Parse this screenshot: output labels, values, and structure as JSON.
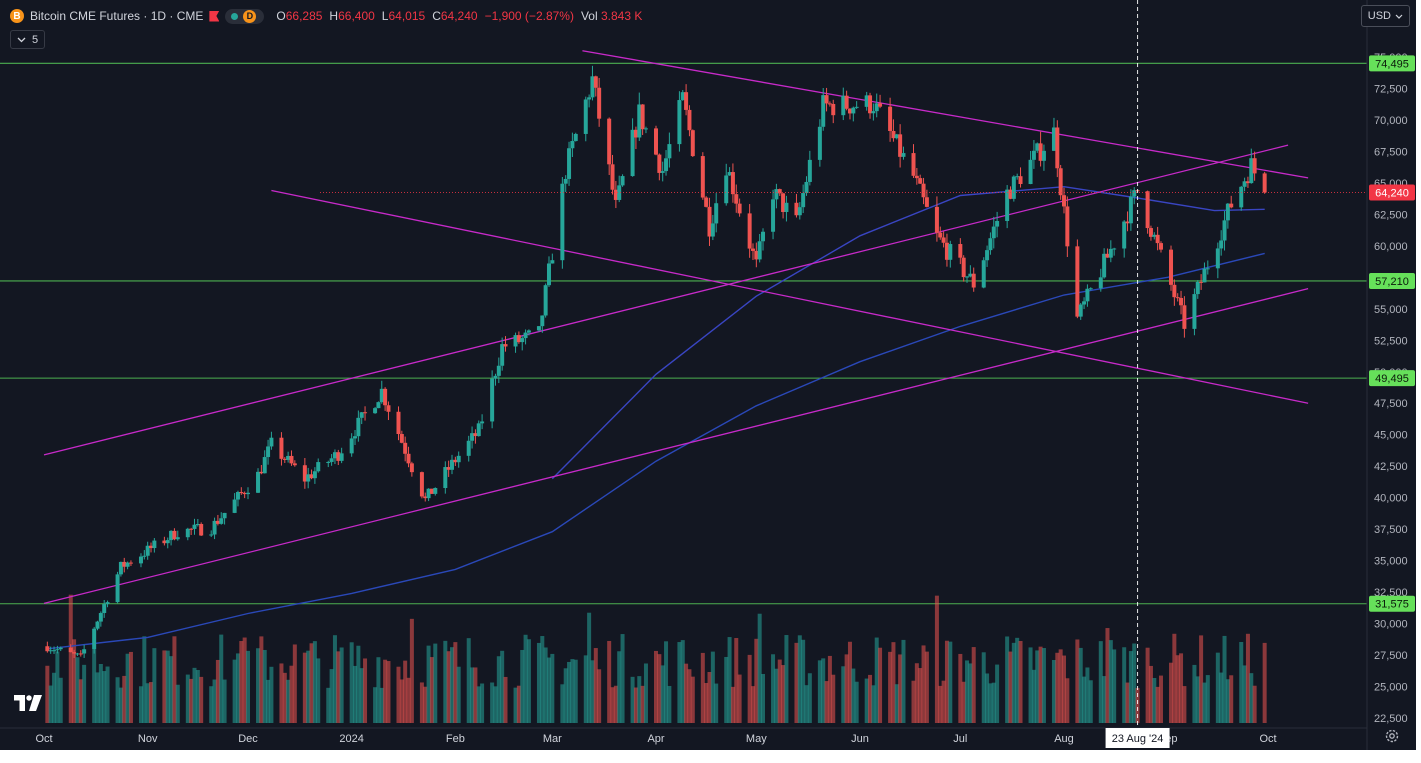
{
  "legend": {
    "symbol": "Bitcoin CME Futures · 1D · CME",
    "coin_letter": "B",
    "timeframe_badge": "D",
    "o_label": "O",
    "o_val": "66,285",
    "h_label": "H",
    "h_val": "66,400",
    "l_label": "L",
    "l_val": "64,015",
    "c_label": "C",
    "c_val": "64,240",
    "change": "−1,900 (−2.87%)",
    "vol_label": "Vol",
    "vol_val": "3.843 K",
    "collapse_count": "5"
  },
  "currency": "USD",
  "colors": {
    "background": "#131722",
    "up": "#26a69a",
    "down": "#ef5350",
    "level": "#4caf50",
    "trendline": "#c72ac9",
    "ma_fast": "#3945c2",
    "ma_slow": "#2a48b8",
    "price_tag": "#f23645",
    "level_tag": "#66e05a"
  },
  "icons": {
    "logo": "tradingview-logo-icon",
    "settings": "gear-icon",
    "dropdown": "chevron-down-icon"
  },
  "chart_data": {
    "type": "candlestick",
    "title": "Bitcoin CME Futures · 1D · CME",
    "y_ticks": [
      22500,
      25000,
      27500,
      30000,
      32500,
      35000,
      37500,
      40000,
      42500,
      45000,
      47500,
      50000,
      52500,
      55000,
      57500,
      60000,
      62500,
      65000,
      67500,
      70000,
      72500,
      75000
    ],
    "x_ticks": [
      "Oct",
      "Nov",
      "Dec",
      "2024",
      "Feb",
      "Mar",
      "Apr",
      "May",
      "Jun",
      "Jul",
      "Aug",
      "Sep",
      "Oct"
    ],
    "last_price": 64240,
    "levels": [
      74495,
      57210,
      49495,
      31575
    ],
    "crosshair_date": "23 Aug '24",
    "price_path": [
      [
        "2023-10-02",
        28200
      ],
      [
        "2023-10-12",
        27300
      ],
      [
        "2023-10-24",
        34500
      ],
      [
        "2023-11-10",
        37300
      ],
      [
        "2023-11-20",
        37600
      ],
      [
        "2023-12-04",
        41800
      ],
      [
        "2023-12-08",
        44200
      ],
      [
        "2023-12-18",
        41500
      ],
      [
        "2023-12-28",
        43500
      ],
      [
        "2024-01-10",
        48500
      ],
      [
        "2024-01-23",
        39800
      ],
      [
        "2024-02-01",
        43000
      ],
      [
        "2024-02-08",
        45300
      ],
      [
        "2024-02-15",
        52000
      ],
      [
        "2024-02-26",
        53000
      ],
      [
        "2024-03-05",
        66000
      ],
      [
        "2024-03-13",
        73200
      ],
      [
        "2024-03-20",
        63000
      ],
      [
        "2024-03-27",
        70500
      ],
      [
        "2024-04-03",
        66000
      ],
      [
        "2024-04-09",
        71600
      ],
      [
        "2024-04-17",
        61600
      ],
      [
        "2024-04-22",
        66500
      ],
      [
        "2024-05-01",
        58400
      ],
      [
        "2024-05-06",
        64300
      ],
      [
        "2024-05-13",
        61800
      ],
      [
        "2024-05-21",
        71100
      ],
      [
        "2024-06-05",
        71300
      ],
      [
        "2024-06-17",
        65500
      ],
      [
        "2024-06-24",
        60700
      ],
      [
        "2024-07-05",
        57000
      ],
      [
        "2024-07-15",
        64200
      ],
      [
        "2024-07-29",
        69000
      ],
      [
        "2024-08-05",
        54200
      ],
      [
        "2024-08-14",
        59100
      ],
      [
        "2024-08-23",
        64400
      ],
      [
        "2024-09-06",
        53800
      ],
      [
        "2024-09-20",
        63300
      ],
      [
        "2024-09-26",
        66400
      ],
      [
        "2024-09-30",
        64240
      ]
    ],
    "moving_averages": {
      "fast": [
        [
          "2024-03-01",
          41500
        ],
        [
          "2024-04-01",
          49800
        ],
        [
          "2024-05-01",
          56000
        ],
        [
          "2024-06-01",
          60800
        ],
        [
          "2024-07-01",
          64000
        ],
        [
          "2024-08-01",
          64700
        ],
        [
          "2024-08-23",
          63800
        ],
        [
          "2024-09-15",
          62800
        ],
        [
          "2024-09-30",
          62900
        ]
      ],
      "slow": [
        [
          "2023-10-02",
          28000
        ],
        [
          "2023-11-01",
          28900
        ],
        [
          "2023-12-01",
          30800
        ],
        [
          "2024-01-01",
          32400
        ],
        [
          "2024-02-01",
          34300
        ],
        [
          "2024-03-01",
          37300
        ],
        [
          "2024-04-01",
          42900
        ],
        [
          "2024-05-01",
          47300
        ],
        [
          "2024-06-01",
          50800
        ],
        [
          "2024-07-01",
          53600
        ],
        [
          "2024-08-01",
          56100
        ],
        [
          "2024-09-01",
          57500
        ],
        [
          "2024-09-30",
          59400
        ]
      ]
    },
    "trendlines": [
      [
        [
          "2023-10-01",
          43400
        ],
        [
          "2024-10-07",
          68000
        ]
      ],
      [
        [
          "2023-10-01",
          31600
        ],
        [
          "2024-10-13",
          56600
        ]
      ],
      [
        [
          "2024-03-10",
          75500
        ],
        [
          "2024-10-13",
          65400
        ]
      ],
      [
        [
          "2023-12-08",
          64400
        ],
        [
          "2024-10-13",
          47500
        ]
      ]
    ],
    "volume_unit": "K contracts"
  }
}
